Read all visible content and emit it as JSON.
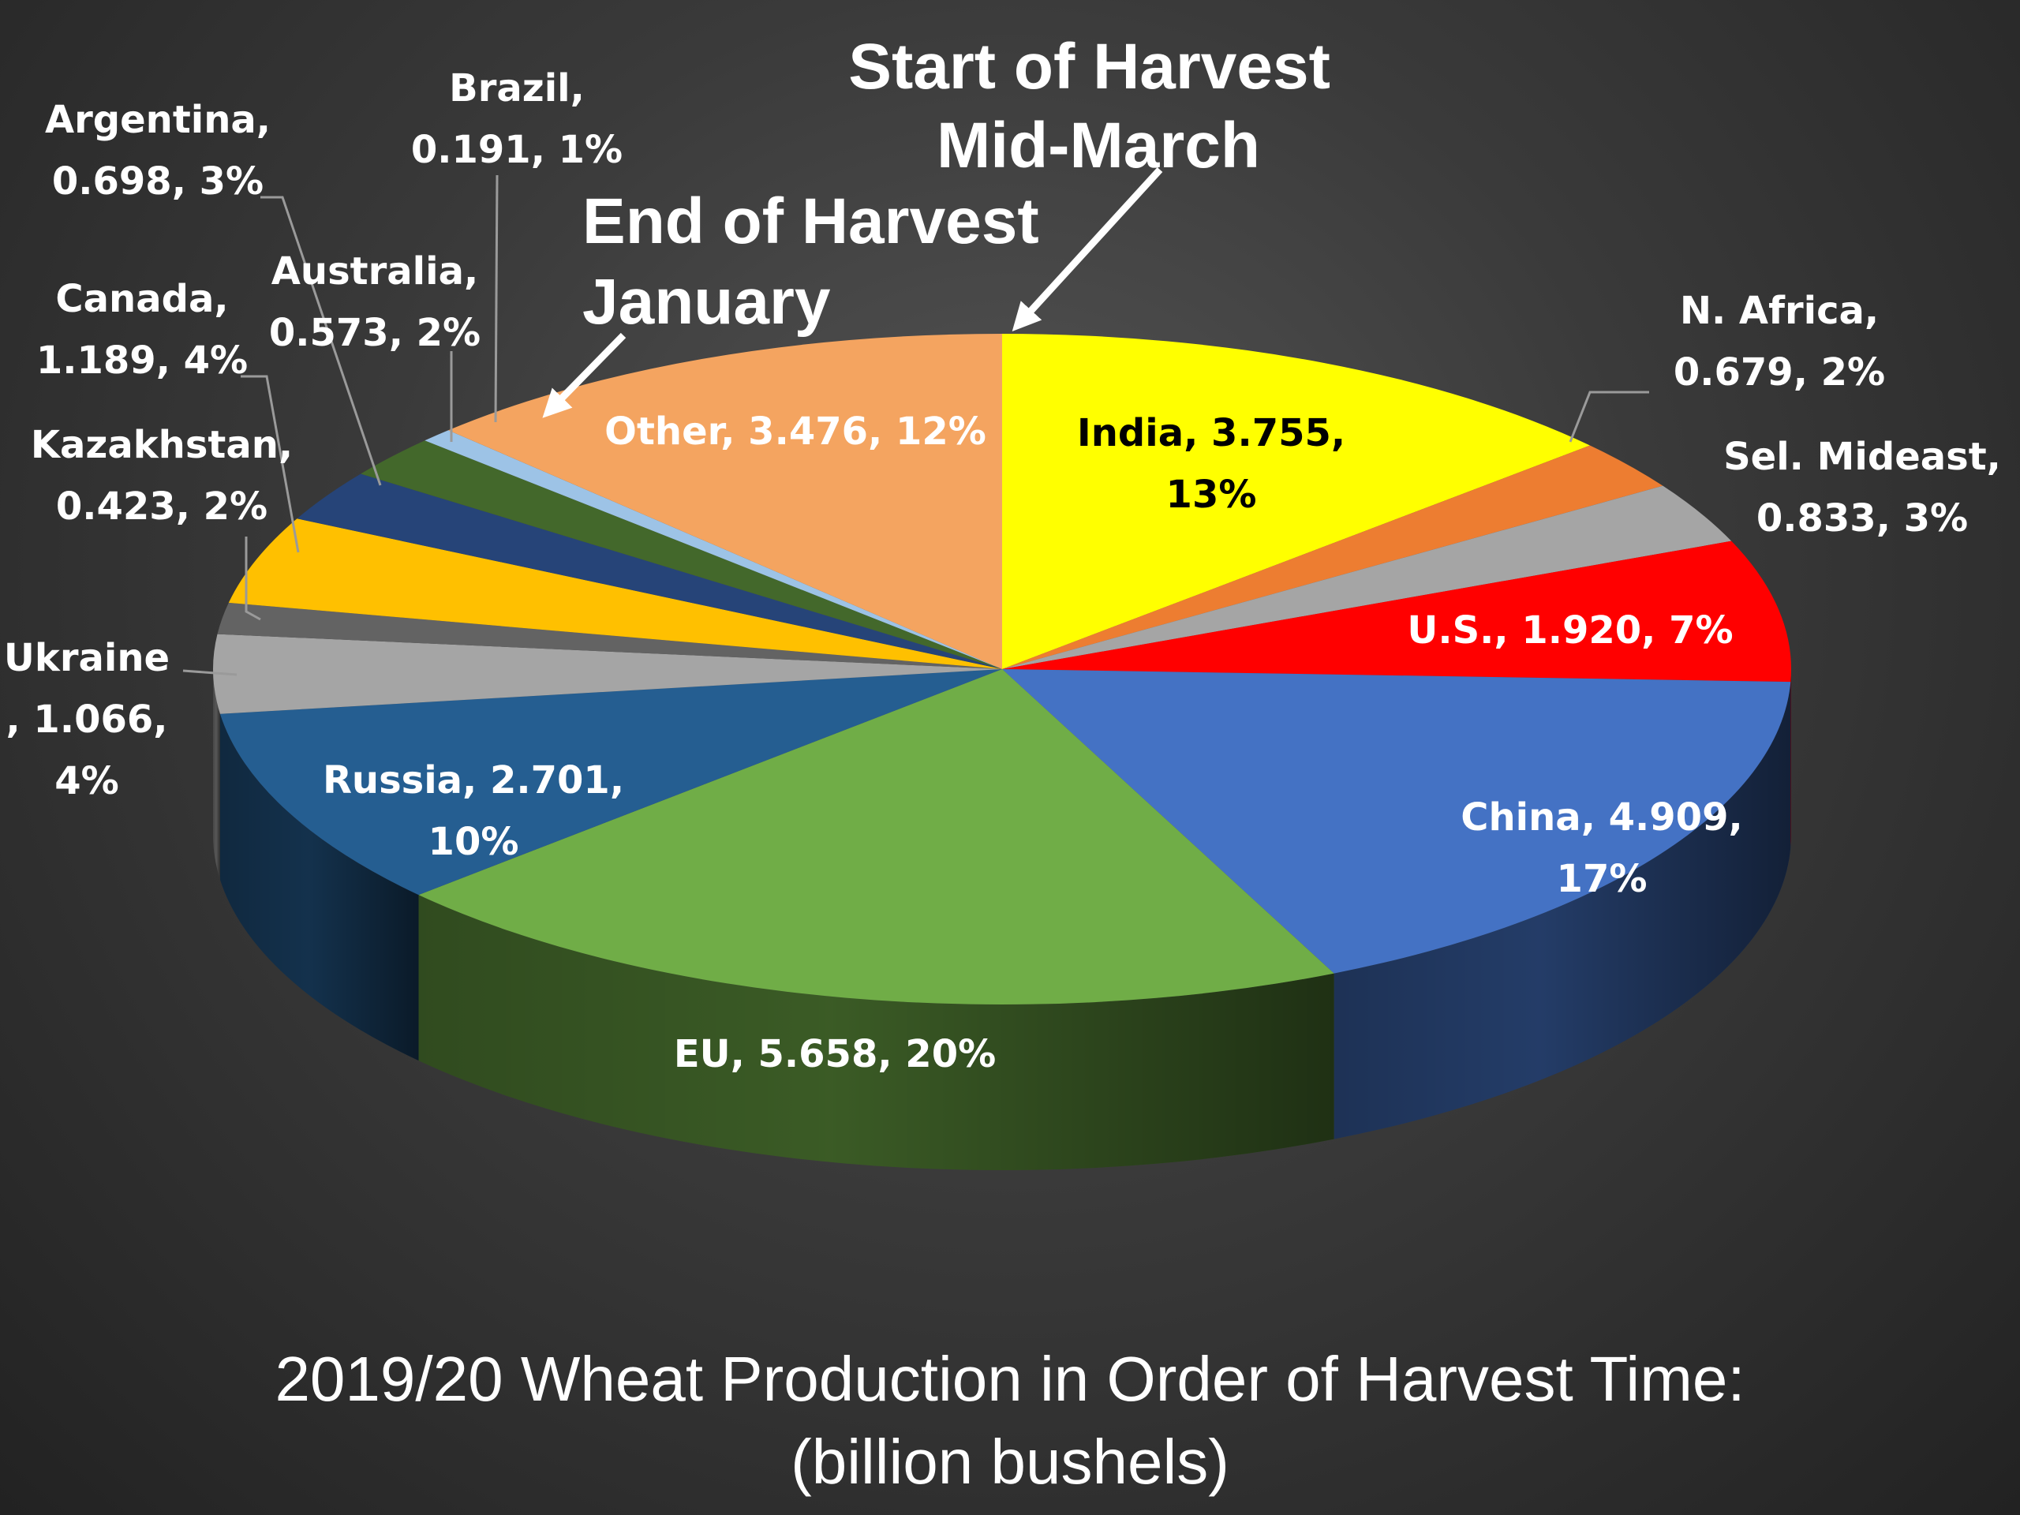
{
  "chart_data": {
    "type": "pie",
    "title": "2019/20 Wheat Production in Order of Harvest Time:",
    "subtitle": "(billion bushels)",
    "slices": [
      {
        "name": "India",
        "value": 3.755,
        "percent": "13%",
        "color": "#ffff00",
        "label_lines": [
          "India, 3.755,",
          "13%"
        ]
      },
      {
        "name": "N. Africa",
        "value": 0.679,
        "percent": "2%",
        "color": "#ed7d31",
        "label_lines": [
          "N. Africa,",
          "0.679, 2%"
        ]
      },
      {
        "name": "Sel. Mideast",
        "value": 0.833,
        "percent": "3%",
        "color": "#a5a5a5",
        "label_lines": [
          "Sel. Mideast,",
          "0.833, 3%"
        ]
      },
      {
        "name": "U.S.",
        "value": 1.92,
        "percent": "7%",
        "color": "#ff0000",
        "label_lines": [
          "U.S., 1.920, 7%"
        ]
      },
      {
        "name": "China",
        "value": 4.909,
        "percent": "17%",
        "color": "#4472c4",
        "label_lines": [
          "China, 4.909,",
          "17%"
        ]
      },
      {
        "name": "EU",
        "value": 5.658,
        "percent": "20%",
        "color": "#70ad47",
        "label_lines": [
          "EU, 5.658, 20%"
        ]
      },
      {
        "name": "Russia",
        "value": 2.701,
        "percent": "10%",
        "color": "#255e91",
        "label_lines": [
          "Russia, 2.701,",
          "10%"
        ]
      },
      {
        "name": "Ukraine",
        "value": 1.066,
        "percent": "4%",
        "color": "#a5a5a5",
        "label_lines": [
          "Ukraine",
          ", 1.066,",
          "4%"
        ]
      },
      {
        "name": "Kazakhstan",
        "value": 0.423,
        "percent": "2%",
        "color": "#636363",
        "label_lines": [
          "Kazakhstan,",
          "0.423, 2%"
        ]
      },
      {
        "name": "Canada",
        "value": 1.189,
        "percent": "4%",
        "color": "#ffc000",
        "label_lines": [
          "Canada,",
          "1.189, 4%"
        ]
      },
      {
        "name": "Argentina",
        "value": 0.698,
        "percent": "3%",
        "color": "#264478",
        "label_lines": [
          "Argentina,",
          "0.698, 3%"
        ]
      },
      {
        "name": "Australia",
        "value": 0.573,
        "percent": "2%",
        "color": "#43682b",
        "label_lines": [
          "Australia,",
          "0.573, 2%"
        ]
      },
      {
        "name": "Brazil",
        "value": 0.191,
        "percent": "1%",
        "color": "#9dc3e6",
        "label_lines": [
          "Brazil,",
          "0.191, 1%"
        ]
      },
      {
        "name": "Other",
        "value": 3.476,
        "percent": "12%",
        "color": "#f4a460",
        "label_lines": [
          "Other, 3.476, 12%"
        ]
      }
    ],
    "annotations": [
      {
        "id": "start",
        "lines": [
          "Start of Harvest",
          "Mid-March"
        ]
      },
      {
        "id": "end",
        "lines": [
          "End of Harvest",
          "January"
        ]
      }
    ],
    "legend": "none"
  }
}
